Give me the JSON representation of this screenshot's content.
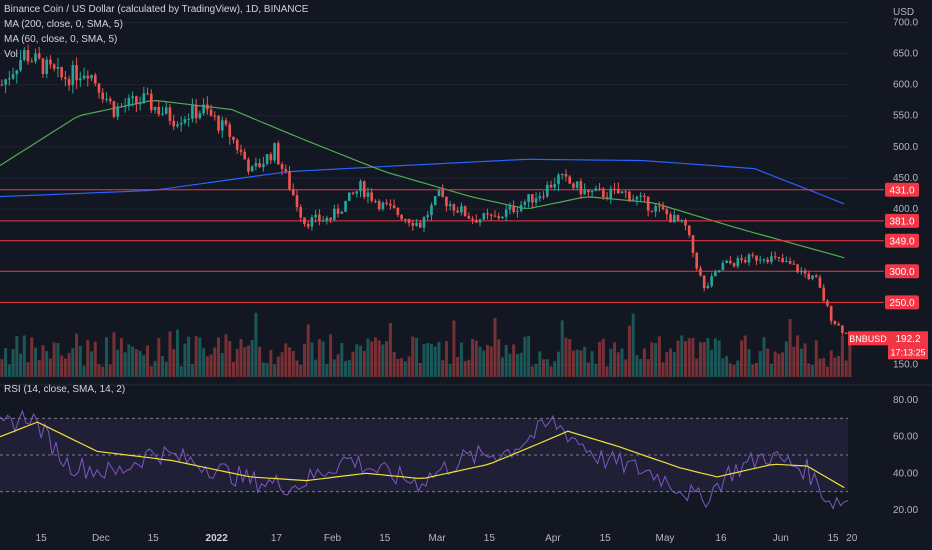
{
  "header": {
    "title": "Binance Coin / US Dollar (calculated by TradingView), 1D, BINANCE",
    "ma200": "MA (200, close, 0, SMA, 5)",
    "ma60": "MA (60, close, 0, SMA, 5)",
    "vol": "Vol"
  },
  "rsi_label": "RSI (14, close, SMA, 14, 2)",
  "price_axis": {
    "unit": "USD",
    "ticks": [
      "700.0",
      "650.0",
      "600.0",
      "550.0",
      "500.0",
      "450.0",
      "400.0",
      "150.0"
    ],
    "levels": [
      "431.0",
      "381.0",
      "349.0",
      "300.0",
      "250.0"
    ],
    "symbol": "BNBUSD",
    "last": "192.2",
    "countdown": "17:13:25"
  },
  "rsi_axis": {
    "ticks": [
      "80.00",
      "60.00",
      "40.00",
      "20.00"
    ]
  },
  "time_axis": [
    "15",
    "Dec",
    "15",
    "2022",
    "17",
    "Feb",
    "15",
    "Mar",
    "15",
    "Apr",
    "15",
    "May",
    "16",
    "Jun",
    "15",
    "20"
  ],
  "colors": {
    "bg": "#131722",
    "up": "#26a69a",
    "down": "#ef5350",
    "ma200": "#2962ff",
    "ma60": "#4caf50",
    "level": "#f23645",
    "rsi": "#7e57c2",
    "rsi_ma": "#f0e03b",
    "grid": "#1f2330"
  },
  "chart_data": {
    "type": "candlestick",
    "x": [
      "2021-11-04",
      "2022-06-19"
    ],
    "ylim": [
      130,
      720
    ],
    "horizontal_levels": [
      431,
      381,
      349,
      300,
      250
    ],
    "anchors": [
      [
        "2021-11-04",
        600
      ],
      [
        "2021-11-10",
        650
      ],
      [
        "2021-11-20",
        610
      ],
      [
        "2021-11-27",
        625
      ],
      [
        "2021-12-04",
        560
      ],
      [
        "2021-12-12",
        575
      ],
      [
        "2021-12-20",
        545
      ],
      [
        "2021-12-28",
        560
      ],
      [
        "2022-01-04",
        520
      ],
      [
        "2022-01-10",
        460
      ],
      [
        "2022-01-16",
        495
      ],
      [
        "2022-01-24",
        380
      ],
      [
        "2022-01-31",
        385
      ],
      [
        "2022-02-08",
        435
      ],
      [
        "2022-02-14",
        405
      ],
      [
        "2022-02-24",
        375
      ],
      [
        "2022-03-01",
        420
      ],
      [
        "2022-03-10",
        385
      ],
      [
        "2022-03-16",
        385
      ],
      [
        "2022-03-28",
        425
      ],
      [
        "2022-04-02",
        450
      ],
      [
        "2022-04-10",
        425
      ],
      [
        "2022-04-20",
        425
      ],
      [
        "2022-04-30",
        395
      ],
      [
        "2022-05-06",
        370
      ],
      [
        "2022-05-11",
        270
      ],
      [
        "2022-05-16",
        310
      ],
      [
        "2022-05-27",
        325
      ],
      [
        "2022-06-03",
        310
      ],
      [
        "2022-06-10",
        285
      ],
      [
        "2022-06-14",
        225
      ],
      [
        "2022-06-19",
        192
      ]
    ],
    "ma60_anchors": [
      [
        "2021-11-04",
        470
      ],
      [
        "2021-11-25",
        550
      ],
      [
        "2021-12-15",
        575
      ],
      [
        "2022-01-05",
        560
      ],
      [
        "2022-01-25",
        510
      ],
      [
        "2022-02-15",
        460
      ],
      [
        "2022-03-10",
        420
      ],
      [
        "2022-03-25",
        400
      ],
      [
        "2022-04-10",
        420
      ],
      [
        "2022-04-28",
        410
      ],
      [
        "2022-05-20",
        370
      ],
      [
        "2022-06-19",
        320
      ]
    ],
    "ma200_anchors": [
      [
        "2021-11-04",
        420
      ],
      [
        "2021-12-15",
        430
      ],
      [
        "2022-01-20",
        460
      ],
      [
        "2022-02-20",
        470
      ],
      [
        "2022-03-25",
        480
      ],
      [
        "2022-04-25",
        478
      ],
      [
        "2022-05-25",
        465
      ],
      [
        "2022-06-19",
        406
      ]
    ],
    "rsi": {
      "ylim": [
        15,
        85
      ],
      "bands": [
        30,
        70
      ],
      "anchors": [
        [
          "2021-11-04",
          65
        ],
        [
          "2021-11-12",
          72
        ],
        [
          "2021-11-22",
          45
        ],
        [
          "2021-12-05",
          40
        ],
        [
          "2021-12-15",
          52
        ],
        [
          "2021-12-28",
          45
        ],
        [
          "2022-01-10",
          36
        ],
        [
          "2022-01-22",
          33
        ],
        [
          "2022-02-05",
          48
        ],
        [
          "2022-02-15",
          40
        ],
        [
          "2022-02-24",
          35
        ],
        [
          "2022-03-08",
          48
        ],
        [
          "2022-03-20",
          52
        ],
        [
          "2022-04-01",
          68
        ],
        [
          "2022-04-14",
          48
        ],
        [
          "2022-04-28",
          40
        ],
        [
          "2022-05-11",
          25
        ],
        [
          "2022-05-18",
          40
        ],
        [
          "2022-05-28",
          50
        ],
        [
          "2022-06-08",
          42
        ],
        [
          "2022-06-14",
          25
        ],
        [
          "2022-06-19",
          25
        ]
      ],
      "ma_anchors": [
        [
          "2021-11-04",
          60
        ],
        [
          "2021-11-14",
          68
        ],
        [
          "2021-11-30",
          52
        ],
        [
          "2021-12-20",
          47
        ],
        [
          "2022-01-10",
          38
        ],
        [
          "2022-01-25",
          36
        ],
        [
          "2022-02-10",
          40
        ],
        [
          "2022-02-25",
          37
        ],
        [
          "2022-03-15",
          45
        ],
        [
          "2022-03-28",
          56
        ],
        [
          "2022-04-05",
          63
        ],
        [
          "2022-04-18",
          55
        ],
        [
          "2022-05-05",
          43
        ],
        [
          "2022-05-15",
          38
        ],
        [
          "2022-05-30",
          45
        ],
        [
          "2022-06-08",
          44
        ],
        [
          "2022-06-19",
          31
        ]
      ]
    }
  }
}
